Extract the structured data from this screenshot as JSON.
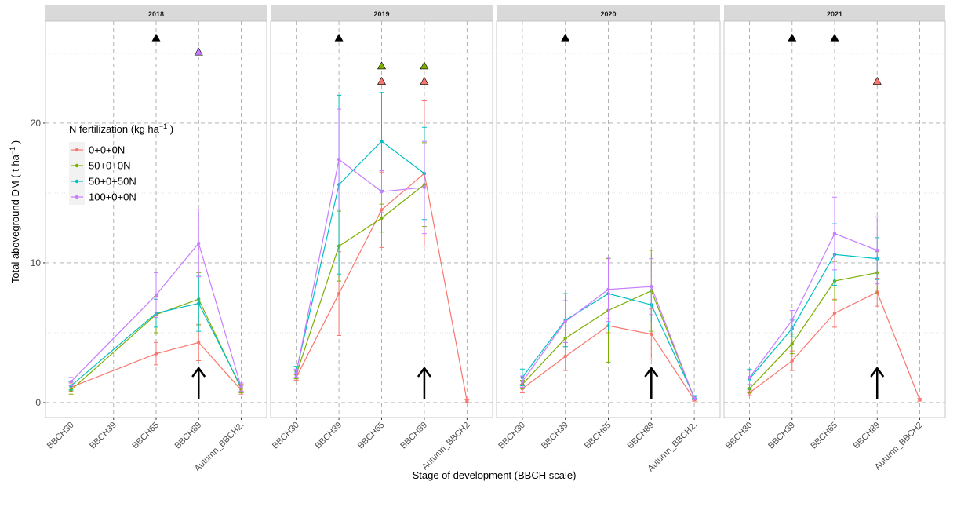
{
  "chart_data": [
    {
      "type": "line",
      "title": "2018",
      "categories": [
        "BBCH30",
        "BBCH39",
        "BBCH65",
        "BBCH89",
        "Autumn_BBCH2."
      ],
      "ylim": [
        -1.07,
        27.3
      ],
      "yticks": [
        0,
        10,
        20
      ],
      "minor_yticks": [
        5,
        15,
        25
      ],
      "grid": true,
      "series": [
        {
          "name": "0+0+0N",
          "color": "#F8766D",
          "x": [
            "BBCH30",
            "BBCH65",
            "BBCH89",
            "Autumn_BBCH2."
          ],
          "values": [
            1.1,
            3.5,
            4.3,
            0.9
          ],
          "errors": [
            0.3,
            0.8,
            1.3,
            0.3
          ]
        },
        {
          "name": "50+0+0N",
          "color": "#7CAE00",
          "x": [
            "BBCH30",
            "BBCH65",
            "BBCH89",
            "Autumn_BBCH2."
          ],
          "values": [
            0.9,
            6.3,
            7.4,
            1.0
          ],
          "errors": [
            0.3,
            1.3,
            1.9,
            0.3
          ]
        },
        {
          "name": "50+0+50N",
          "color": "#00BFC4",
          "x": [
            "BBCH30",
            "BBCH65",
            "BBCH89",
            "Autumn_BBCH2."
          ],
          "values": [
            1.2,
            6.4,
            7.1,
            1.1
          ],
          "errors": [
            0.3,
            1.0,
            2.0,
            0.3
          ]
        },
        {
          "name": "100+0+0N",
          "color": "#C77CFF",
          "x": [
            "BBCH30",
            "BBCH65",
            "BBCH89",
            "Autumn_BBCH2."
          ],
          "values": [
            1.5,
            7.7,
            11.4,
            1.1
          ],
          "errors": [
            0.3,
            1.6,
            2.4,
            0.3
          ]
        }
      ],
      "markers": [
        {
          "x": "BBCH65",
          "y": 26.1,
          "color": "#000000"
        },
        {
          "x": "BBCH89",
          "y": 25.1,
          "color": "#C77CFF"
        }
      ]
    },
    {
      "type": "line",
      "title": "2019",
      "categories": [
        "BBCH30",
        "BBCH39",
        "BBCH65",
        "BBCH89",
        "Autumn_BBCH2"
      ],
      "ylim": [
        -1.07,
        27.3
      ],
      "yticks": [
        0,
        10,
        20
      ],
      "minor_yticks": [
        5,
        15,
        25
      ],
      "grid": true,
      "series": [
        {
          "name": "0+0+0N",
          "color": "#F8766D",
          "x": [
            "BBCH30",
            "BBCH39",
            "BBCH65",
            "BBCH89",
            "Autumn_BBCH2"
          ],
          "values": [
            1.8,
            7.8,
            13.8,
            16.4,
            0.1
          ],
          "errors": [
            0.2,
            3.0,
            2.7,
            5.2,
            0.1
          ]
        },
        {
          "name": "50+0+0N",
          "color": "#7CAE00",
          "x": [
            "BBCH30",
            "BBCH39",
            "BBCH65",
            "BBCH89"
          ],
          "values": [
            2.0,
            11.2,
            13.2,
            15.6
          ],
          "errors": [
            0.3,
            2.5,
            1.0,
            3.0
          ]
        },
        {
          "name": "50+0+50N",
          "color": "#00BFC4",
          "x": [
            "BBCH30",
            "BBCH39",
            "BBCH65",
            "BBCH89"
          ],
          "values": [
            2.2,
            15.6,
            18.7,
            16.4
          ],
          "errors": [
            0.4,
            6.4,
            3.5,
            3.3
          ]
        },
        {
          "name": "100+0+0N",
          "color": "#C77CFF",
          "x": [
            "BBCH30",
            "BBCH39",
            "BBCH65",
            "BBCH89"
          ],
          "values": [
            2.1,
            17.4,
            15.1,
            15.4
          ],
          "errors": [
            0.3,
            3.6,
            1.5,
            3.3
          ]
        }
      ],
      "markers": [
        {
          "x": "BBCH39",
          "y": 26.1,
          "color": "#000000"
        },
        {
          "x": "BBCH65",
          "y": 24.1,
          "color": "#7CAE00"
        },
        {
          "x": "BBCH65",
          "y": 23.0,
          "color": "#F8766D"
        },
        {
          "x": "BBCH89",
          "y": 24.1,
          "color": "#7CAE00"
        },
        {
          "x": "BBCH89",
          "y": 23.0,
          "color": "#F8766D"
        }
      ]
    },
    {
      "type": "line",
      "title": "2020",
      "categories": [
        "BBCH30",
        "BBCH39",
        "BBCH65",
        "BBCH89",
        "Autumn_BBCH2."
      ],
      "ylim": [
        -1.07,
        27.3
      ],
      "yticks": [
        0,
        10,
        20
      ],
      "minor_yticks": [
        5,
        15,
        25
      ],
      "grid": true,
      "series": [
        {
          "name": "0+0+0N",
          "color": "#F8766D",
          "x": [
            "BBCH30",
            "BBCH39",
            "BBCH65",
            "BBCH89",
            "Autumn_BBCH2."
          ],
          "values": [
            1.0,
            3.3,
            5.5,
            4.9,
            0.2
          ],
          "errors": [
            0.3,
            1.0,
            0.5,
            1.8,
            0.1
          ]
        },
        {
          "name": "50+0+0N",
          "color": "#7CAE00",
          "x": [
            "BBCH30",
            "BBCH39",
            "BBCH65",
            "BBCH89",
            "Autumn_BBCH2."
          ],
          "values": [
            1.3,
            4.6,
            6.6,
            8.0,
            0.3
          ],
          "errors": [
            0.3,
            0.6,
            3.7,
            2.9,
            0.1
          ]
        },
        {
          "name": "50+0+50N",
          "color": "#00BFC4",
          "x": [
            "BBCH30",
            "BBCH39",
            "BBCH65",
            "BBCH89",
            "Autumn_BBCH2."
          ],
          "values": [
            1.8,
            5.9,
            7.8,
            7.0,
            0.4
          ],
          "errors": [
            0.6,
            1.9,
            2.6,
            1.3,
            0.1
          ]
        },
        {
          "name": "100+0+0N",
          "color": "#C77CFF",
          "x": [
            "BBCH30",
            "BBCH39",
            "BBCH65",
            "BBCH89",
            "Autumn_BBCH2."
          ],
          "values": [
            1.5,
            5.8,
            8.1,
            8.3,
            0.3
          ],
          "errors": [
            0.4,
            1.5,
            2.3,
            2.0,
            0.1
          ]
        }
      ],
      "markers": [
        {
          "x": "BBCH39",
          "y": 26.1,
          "color": "#000000"
        }
      ]
    },
    {
      "type": "line",
      "title": "2021",
      "categories": [
        "BBCH30",
        "BBCH39",
        "BBCH65",
        "BBCH89",
        "Autumn_BBCH2"
      ],
      "ylim": [
        -1.07,
        27.3
      ],
      "yticks": [
        0,
        10,
        20
      ],
      "minor_yticks": [
        5,
        15,
        25
      ],
      "grid": true,
      "series": [
        {
          "name": "0+0+0N",
          "color": "#F8766D",
          "x": [
            "BBCH30",
            "BBCH39",
            "BBCH65",
            "BBCH89",
            "Autumn_BBCH2"
          ],
          "values": [
            0.7,
            3.0,
            6.4,
            7.9,
            0.2
          ],
          "errors": [
            0.2,
            0.7,
            1.0,
            1.0,
            0.1
          ]
        },
        {
          "name": "50+0+0N",
          "color": "#7CAE00",
          "x": [
            "BBCH30",
            "BBCH39",
            "BBCH65",
            "BBCH89"
          ],
          "values": [
            1.0,
            4.2,
            8.7,
            9.3
          ],
          "errors": [
            0.3,
            0.7,
            1.4,
            1.5
          ]
        },
        {
          "name": "50+0+50N",
          "color": "#00BFC4",
          "x": [
            "BBCH30",
            "BBCH39",
            "BBCH65",
            "BBCH89"
          ],
          "values": [
            1.7,
            5.3,
            10.6,
            10.3
          ],
          "errors": [
            0.7,
            0.6,
            2.2,
            1.5
          ]
        },
        {
          "name": "100+0+0N",
          "color": "#C77CFF",
          "x": [
            "BBCH30",
            "BBCH39",
            "BBCH65",
            "BBCH89"
          ],
          "values": [
            1.8,
            5.9,
            12.1,
            10.9
          ],
          "errors": [
            0.5,
            0.7,
            2.6,
            2.4
          ]
        }
      ],
      "markers": [
        {
          "x": "BBCH39",
          "y": 26.1,
          "color": "#000000"
        },
        {
          "x": "BBCH65",
          "y": 26.1,
          "color": "#000000"
        },
        {
          "x": "BBCH89",
          "y": 23.0,
          "color": "#F8766D"
        }
      ]
    }
  ],
  "xlabel": "Stage of development (BBCH scale)",
  "ylabel": [
    "Total aboveground DM ( t  ha",
    "−1",
    " )"
  ],
  "legend_title": [
    "N fertilization (kg  ha",
    "−1",
    " )"
  ]
}
